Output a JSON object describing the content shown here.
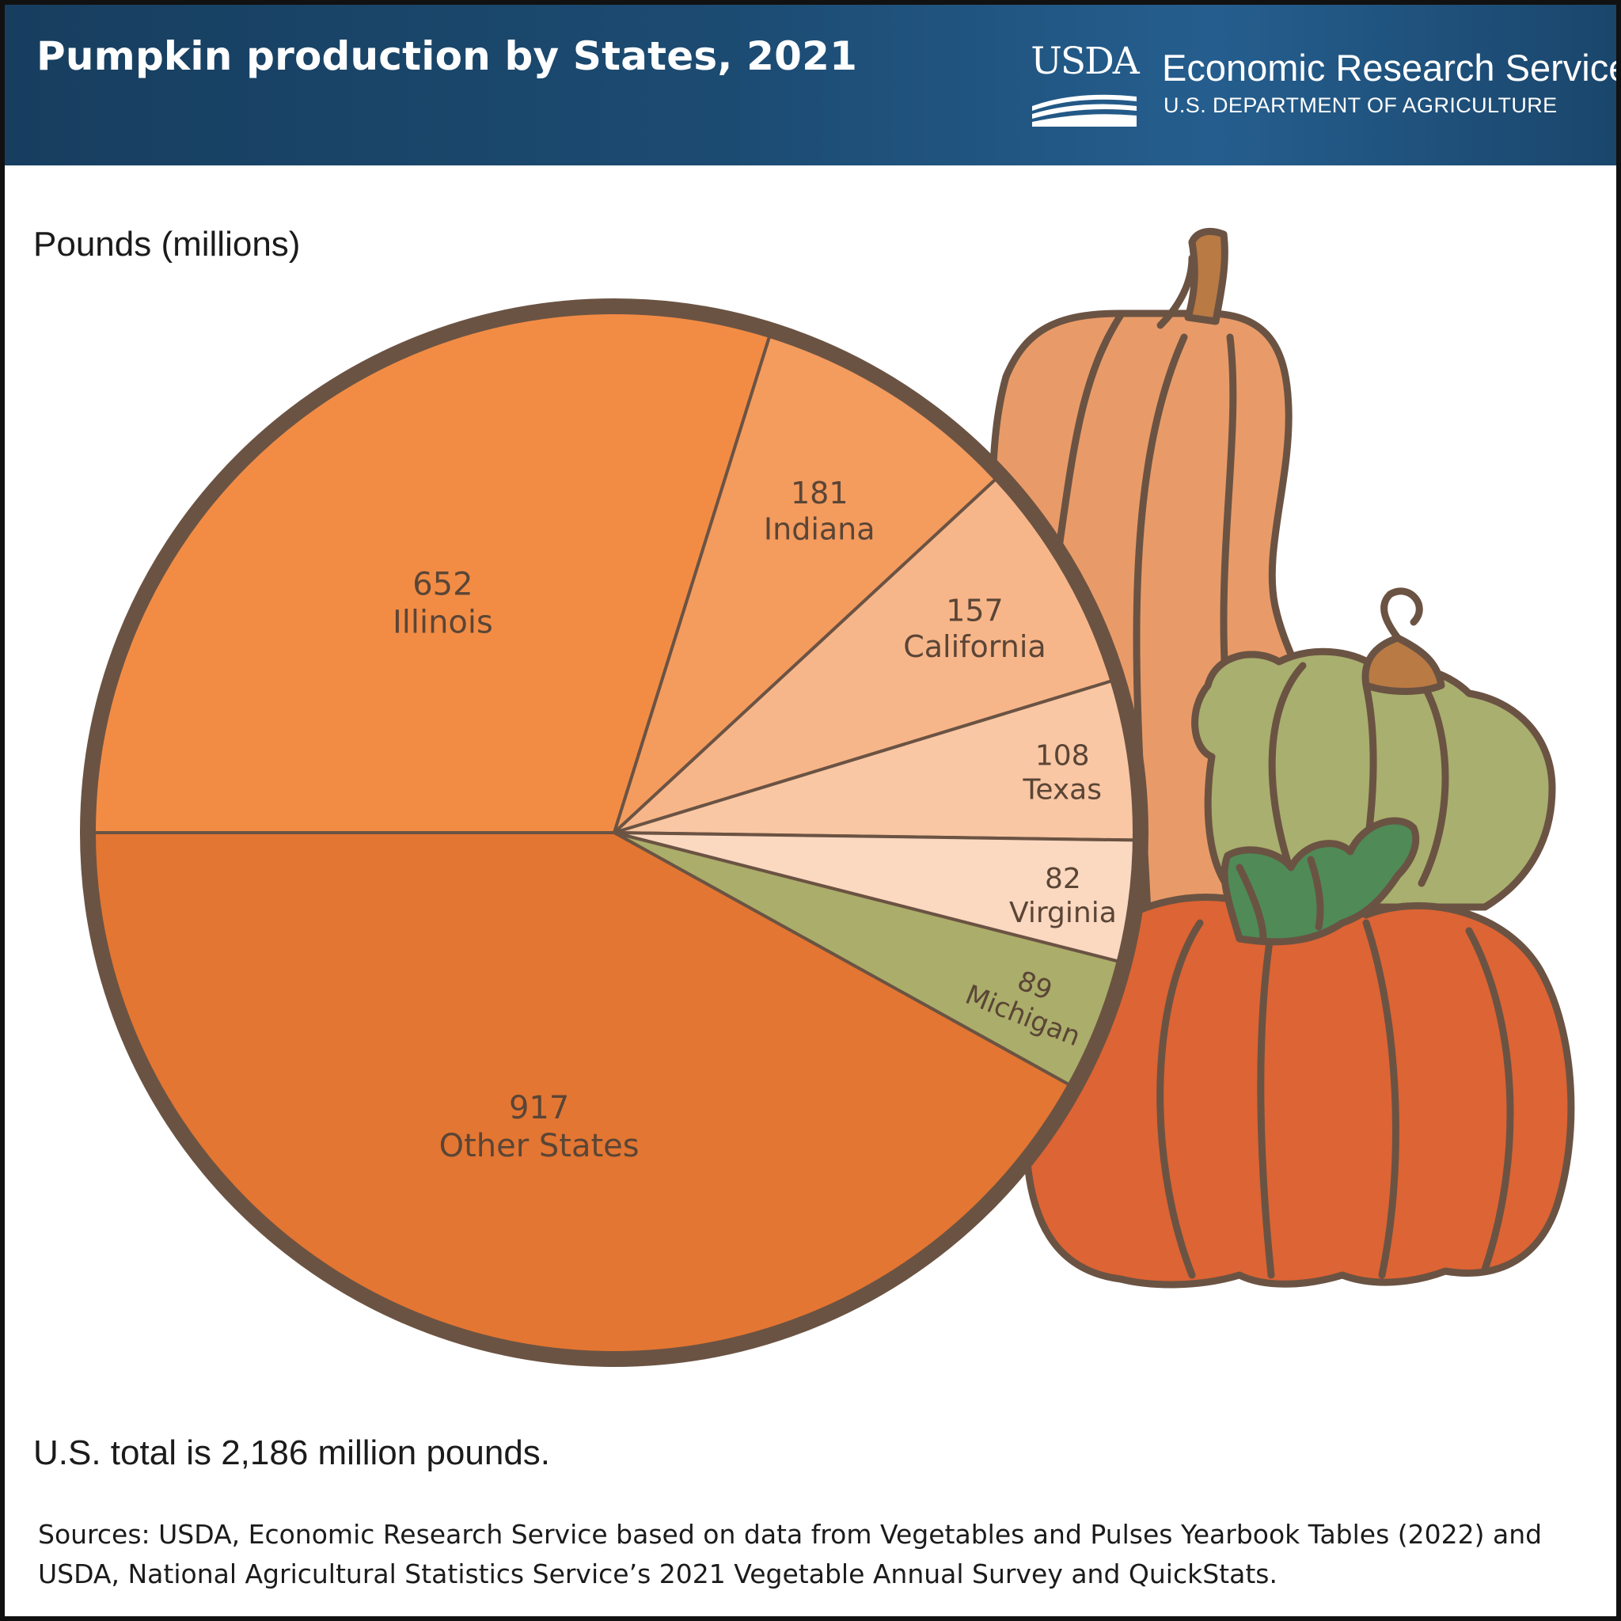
{
  "header": {
    "title": "Pumpkin production by States, 2021",
    "logo_text": "USDA",
    "agency": "Economic Research Service",
    "department": "U.S. DEPARTMENT OF AGRICULTURE"
  },
  "chart_data": {
    "type": "pie",
    "unit_label": "Pounds (millions)",
    "slices": [
      {
        "label": "Illinois",
        "value": 652,
        "color": "#f28c45"
      },
      {
        "label": "Indiana",
        "value": 181,
        "color": "#f49b5e"
      },
      {
        "label": "California",
        "value": 157,
        "color": "#f7b68a"
      },
      {
        "label": "Texas",
        "value": 108,
        "color": "#f9c7a4"
      },
      {
        "label": "Virginia",
        "value": 82,
        "color": "#fbd8c0"
      },
      {
        "label": "Michigan",
        "value": 89,
        "color": "#abad6a"
      },
      {
        "label": "Other States",
        "value": 917,
        "color": "#e37632"
      }
    ],
    "total_note": "U.S. total is 2,186 million pounds.",
    "outline_color": "#6b5343"
  },
  "footer": {
    "sources": "Sources: USDA, Economic Research Service based on data from Vegetables and Pulses Yearbook Tables (2022) and USDA, National Agricultural Statistics Service’s 2021 Vegetable Annual Survey and QuickStats."
  }
}
